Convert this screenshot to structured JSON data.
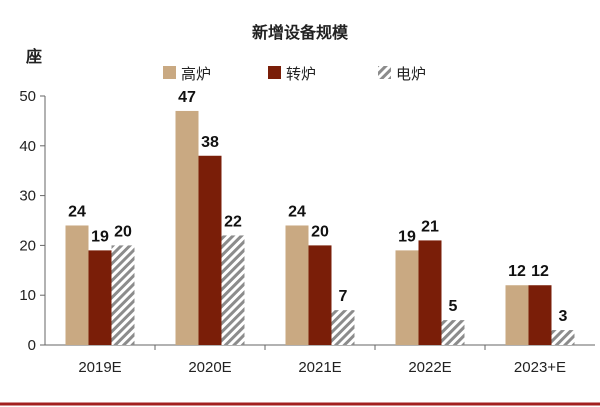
{
  "chart_data": {
    "type": "bar",
    "title": "新增设备规模",
    "ylabel": "座",
    "ylim": [
      0,
      50
    ],
    "yticks": [
      0,
      10,
      20,
      30,
      40,
      50
    ],
    "categories": [
      "2019E",
      "2020E",
      "2021E",
      "2022E",
      "2023+E"
    ],
    "series": [
      {
        "name": "高炉",
        "values": [
          24,
          47,
          24,
          19,
          12
        ],
        "color": "#c9a982",
        "pattern": "solid"
      },
      {
        "name": "转炉",
        "values": [
          19,
          38,
          20,
          21,
          12
        ],
        "color": "#7a1e08",
        "pattern": "solid"
      },
      {
        "name": "电炉",
        "values": [
          20,
          22,
          7,
          5,
          3
        ],
        "color": "#8c8c8c",
        "pattern": "hatch"
      }
    ],
    "legend": "top",
    "grid": false
  },
  "colors": {
    "axis": "#666666",
    "bottom_rule": "#a31f1f"
  }
}
